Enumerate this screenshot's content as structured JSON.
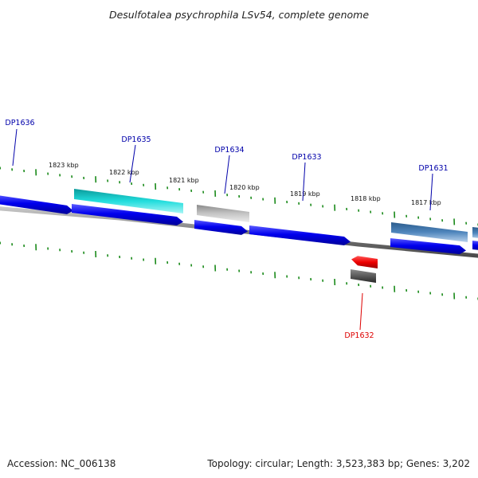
{
  "title": "Desulfotalea psychrophila LSv54, complete genome",
  "footer": {
    "accession": "Accession: NC_006138",
    "stats": "Topology: circular; Length: 3,523,383 bp; Genes: 3,202"
  },
  "colors": {
    "tick": "#1a8a1a",
    "backbone": "#808080",
    "cds": "#0000ee",
    "label_blue": "#0000aa",
    "label_red": "#dd0000",
    "cyan": "#1fd6d6",
    "grey": "#b8b8b8",
    "steel": "#4a80b8",
    "red": "#ee0000",
    "dark": "#606060"
  },
  "ruler_labels": [
    "1823 kbp",
    "1822 kbp",
    "1821 kbp",
    "1820 kbp",
    "1819 kbp",
    "1818 kbp",
    "1817 kbp"
  ],
  "gene_labels": [
    {
      "text": "DP1636",
      "color": "blue"
    },
    {
      "text": "DP1635",
      "color": "blue"
    },
    {
      "text": "DP1634",
      "color": "blue"
    },
    {
      "text": "DP1633",
      "color": "blue"
    },
    {
      "text": "DP1631",
      "color": "blue"
    },
    {
      "text": "DP1632",
      "color": "red"
    }
  ],
  "features": [
    {
      "track": "cds",
      "color": "cds"
    },
    {
      "track": "cds",
      "color": "cds"
    },
    {
      "track": "cds",
      "color": "cds"
    },
    {
      "track": "cds",
      "color": "cds"
    },
    {
      "track": "cds",
      "color": "cds"
    },
    {
      "track": "cds",
      "color": "cds"
    },
    {
      "track": "gene",
      "color": "cyan"
    },
    {
      "track": "gene",
      "color": "grey"
    },
    {
      "track": "gene",
      "color": "steel"
    },
    {
      "track": "gene",
      "color": "steel"
    },
    {
      "track": "gene",
      "color": "red"
    },
    {
      "track": "gene",
      "color": "dark"
    }
  ]
}
